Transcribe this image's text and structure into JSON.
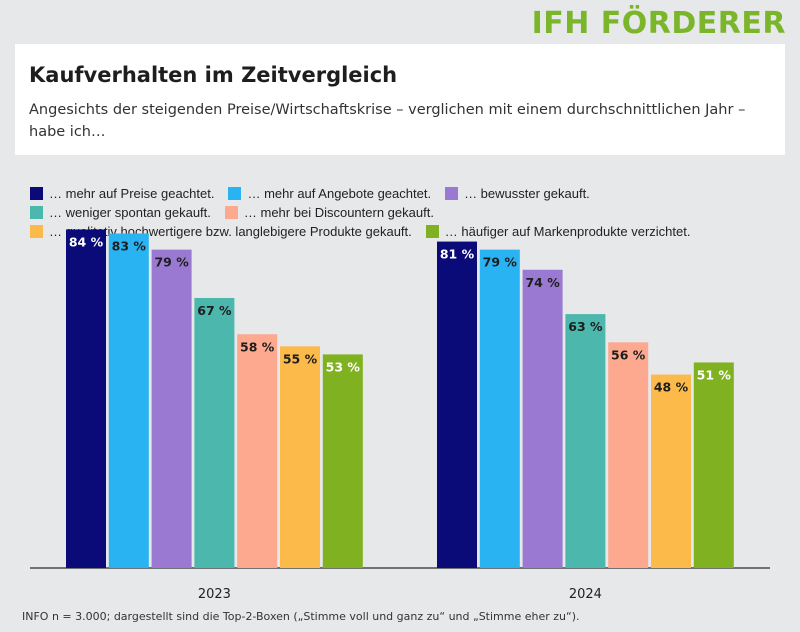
{
  "brand": "IFH FÖRDERER",
  "header": {
    "title": "Kaufverhalten im Zeitvergleich",
    "subtitle": "Angesichts der steigenden Preise/Wirtschaftskrise – verglichen mit einem durchschnittlichen Jahr – habe ich…"
  },
  "legend": [
    {
      "name": "… mehr auf Preise geachtet.",
      "color": "#0a0a78"
    },
    {
      "name": "… mehr auf Angebote geachtet.",
      "color": "#29b3f2"
    },
    {
      "name": "… bewusster gekauft.",
      "color": "#9a79d2"
    },
    {
      "name": "… weniger spontan gekauft.",
      "color": "#4cb7ac"
    },
    {
      "name": "… mehr bei Discountern gekauft.",
      "color": "#fda990"
    },
    {
      "name": "… qualitativ hochwertigere bzw. langlebigere Produkte gekauft.",
      "color": "#fcba4a"
    },
    {
      "name": "… häufiger auf Markenprodukte verzichtet.",
      "color": "#80b121"
    }
  ],
  "chart_data": {
    "type": "bar",
    "categories": [
      "2023",
      "2024"
    ],
    "value_suffix": " %",
    "ylim": [
      0,
      100
    ],
    "grid": false,
    "legend_position": "top",
    "series": [
      {
        "name": "… mehr auf Preise geachtet.",
        "color": "#0a0a78",
        "label_color": "#ffffff",
        "values": [
          84,
          81
        ]
      },
      {
        "name": "… mehr auf Angebote geachtet.",
        "color": "#29b3f2",
        "label_color": "#1e1e1e",
        "values": [
          83,
          79
        ]
      },
      {
        "name": "… bewusster gekauft.",
        "color": "#9a79d2",
        "label_color": "#1e1e1e",
        "values": [
          79,
          74
        ]
      },
      {
        "name": "… weniger spontan gekauft.",
        "color": "#4cb7ac",
        "label_color": "#1e1e1e",
        "values": [
          67,
          63
        ]
      },
      {
        "name": "… mehr bei Discountern gekauft.",
        "color": "#fda990",
        "label_color": "#1e1e1e",
        "values": [
          58,
          56
        ]
      },
      {
        "name": "… qualitativ hochwertigere bzw. langlebigere Produkte gekauft.",
        "color": "#fcba4a",
        "label_color": "#1e1e1e",
        "values": [
          55,
          48
        ]
      },
      {
        "name": "… häufiger auf Markenprodukte verzichtet.",
        "color": "#80b121",
        "label_color": "#ffffff",
        "values": [
          53,
          51
        ]
      }
    ]
  },
  "footer": {
    "info": "INFO n = 3.000; dargestellt sind die Top-2-Boxen („Stimme voll und ganz zu“ und „Stimme eher zu“)."
  }
}
